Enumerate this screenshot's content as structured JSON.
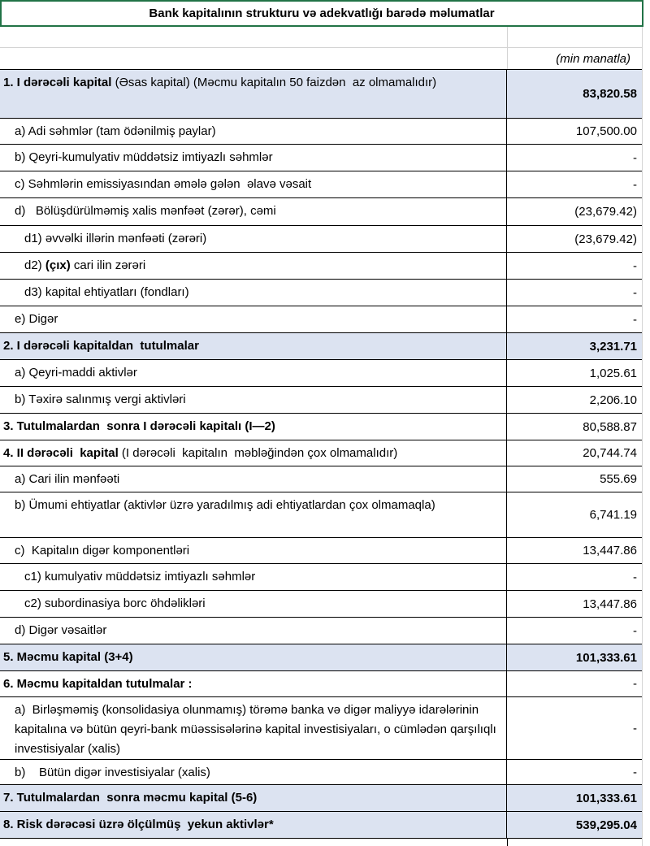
{
  "header": {
    "title": "Bank kapitalının strukturu və adekvatlığı barədə məlumatlar",
    "unit": "(min manatla)"
  },
  "table": {
    "rows": [
      {
        "label": [
          {
            "text": "1. I dərəcəli kapital",
            "bold": true
          },
          {
            "text": " (Əsas kapital) (Məcmu kapitalın 50 faizdən  az olmamalıdır)",
            "bold": false
          }
        ],
        "value": "83,820.58",
        "highlight": true,
        "value_bold": true
      },
      {
        "label": [
          {
            "text": "a) Adi səhmlər (tam ödənilmiş paylar)",
            "bold": false
          }
        ],
        "value": "107,500.00",
        "highlight": false,
        "value_bold": false
      },
      {
        "label": [
          {
            "text": "b) Qeyri-kumulyativ müddətsiz imtiyazlı səhmlər",
            "bold": false
          }
        ],
        "value": "-",
        "highlight": false,
        "value_bold": false
      },
      {
        "label": [
          {
            "text": "c) Səhmlərin emissiyasından əmələ gələn  əlavə vəsait",
            "bold": false
          }
        ],
        "value": "-",
        "highlight": false,
        "value_bold": false
      },
      {
        "label": [
          {
            "text": "d)   Bölüşdürülməmiş xalis mənfəət (zərər), cəmi",
            "bold": false
          }
        ],
        "value": "(23,679.42)",
        "highlight": false,
        "value_bold": false
      },
      {
        "label": [
          {
            "text": "d1) əvvəlki illərin mənfəəti (zərəri)",
            "bold": false
          }
        ],
        "value": "(23,679.42)",
        "highlight": false,
        "value_bold": false
      },
      {
        "label": [
          {
            "text": "d2) ",
            "bold": false
          },
          {
            "text": "(çıx)",
            "bold": true
          },
          {
            "text": " cari ilin zərəri",
            "bold": false
          }
        ],
        "value": "-",
        "highlight": false,
        "value_bold": false
      },
      {
        "label": [
          {
            "text": "d3) kapital ehtiyatları (fondları)",
            "bold": false
          }
        ],
        "value": "-",
        "highlight": false,
        "value_bold": false
      },
      {
        "label": [
          {
            "text": "e) Digər",
            "bold": false
          }
        ],
        "value": "-",
        "highlight": false,
        "value_bold": false
      },
      {
        "label": [
          {
            "text": "2. I dərəcəli kapitaldan  tutulmalar",
            "bold": true
          }
        ],
        "value": "3,231.71",
        "highlight": true,
        "value_bold": true
      },
      {
        "label": [
          {
            "text": "a) Qeyri-maddi aktivlər",
            "bold": false
          }
        ],
        "value": "1,025.61",
        "highlight": false,
        "value_bold": false
      },
      {
        "label": [
          {
            "text": "b) Təxirə salınmış vergi aktivləri",
            "bold": false
          }
        ],
        "value": "2,206.10",
        "highlight": false,
        "value_bold": false
      },
      {
        "label": [
          {
            "text": "3. Tutulmalardan  sonra I dərəcəli kapitalı (I—2)",
            "bold": true
          }
        ],
        "value": "80,588.87",
        "highlight": false,
        "value_bold": false
      },
      {
        "label": [
          {
            "text": "4. II dərəcəli  kapital",
            "bold": true
          },
          {
            "text": " (I dərəcəli  kapitalın  məbləğindən çox olmamalıdır)",
            "bold": false
          }
        ],
        "value": "20,744.74",
        "highlight": false,
        "value_bold": false
      },
      {
        "label": [
          {
            "text": "a) Cari ilin mənfəəti",
            "bold": false
          }
        ],
        "value": "555.69",
        "highlight": false,
        "value_bold": false
      },
      {
        "label": [
          {
            "text": "b) Ümumi ehtiyatlar (aktivlər üzrə yaradılmış adi ehtiyatlardan çox olmamaqla)",
            "bold": false
          }
        ],
        "value": "6,741.19",
        "highlight": false,
        "value_bold": false
      },
      {
        "label": [
          {
            "text": "c)  Kapitalın digər komponentləri",
            "bold": false
          }
        ],
        "value": "13,447.86",
        "highlight": false,
        "value_bold": false
      },
      {
        "label": [
          {
            "text": "c1) kumulyativ müddətsiz imtiyazlı səhmlər",
            "bold": false
          }
        ],
        "value": "-",
        "highlight": false,
        "value_bold": false
      },
      {
        "label": [
          {
            "text": "c2) subordinasiya borc öhdəlikləri",
            "bold": false
          }
        ],
        "value": "13,447.86",
        "highlight": false,
        "value_bold": false
      },
      {
        "label": [
          {
            "text": "d) Digər vəsaitlər",
            "bold": false
          }
        ],
        "value": "-",
        "highlight": false,
        "value_bold": false
      },
      {
        "label": [
          {
            "text": "5. Məcmu kapital (3+4)",
            "bold": true
          }
        ],
        "value": "101,333.61",
        "highlight": true,
        "value_bold": true
      },
      {
        "label": [
          {
            "text": "6. Məcmu kapitaldan tutulmalar :",
            "bold": true
          }
        ],
        "value": "-",
        "highlight": false,
        "value_bold": false
      },
      {
        "label": [
          {
            "text": "a)  Birləşməmiş (konsolidasiya olunmamış) törəmə banka və digər maliyyə idarələrinin kapitalına və bütün qeyri-bank müəssisələrinə kapital investisiyaları, o cümlədən qarşılıqlı investisiyalar (xalis)",
            "bold": false
          }
        ],
        "value": "-",
        "highlight": false,
        "value_bold": false
      },
      {
        "label": [
          {
            "text": "b)    Bütün digər investisiyalar (xalis)",
            "bold": false
          }
        ],
        "value": "-",
        "highlight": false,
        "value_bold": false
      },
      {
        "label": [
          {
            "text": "7. Tutulmalardan  sonra məcmu kapital (5-6)",
            "bold": true
          }
        ],
        "value": "101,333.61",
        "highlight": true,
        "value_bold": true
      },
      {
        "label": [
          {
            "text": "8. Risk dərəcəsi üzrə ölçülmüş  yekun aktivlər*",
            "bold": true
          }
        ],
        "value": "539,295.04",
        "highlight": true,
        "value_bold": true
      }
    ]
  }
}
